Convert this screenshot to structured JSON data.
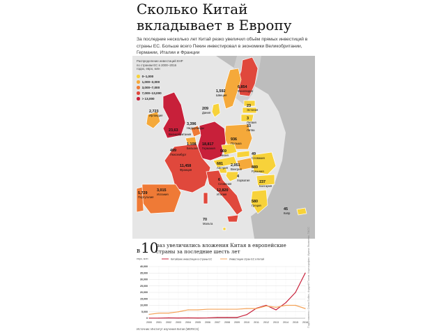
{
  "header": {
    "title": "Сколько Китай вкладывает в Европу",
    "lead": "За последние несколько лет Китай резко увеличил объём прямых инвестиций в страны ЕС. Больше всего Пекин инвестировал в экономики Великобритании, Германии, Италии и Франции"
  },
  "legend": {
    "caption": "Распределение инвестиций КНР по странам ЕС в 2000–2016 годах, евро, млн",
    "items": [
      {
        "label": "0–1,000",
        "color": "#f7d23a"
      },
      {
        "label": "1,000–3,000",
        "color": "#f5a93a"
      },
      {
        "label": "3,000–7,000",
        "color": "#ef7a36"
      },
      {
        "label": "7,000–13,000",
        "color": "#e0483c"
      },
      {
        "label": "> 13,000",
        "color": "#c8203a"
      }
    ]
  },
  "map": {
    "countries": [
      {
        "name": "Ирландия",
        "value": "2,723"
      },
      {
        "name": "Великобритания",
        "value": "23,63"
      },
      {
        "name": "Нидерланды",
        "value": "3,396"
      },
      {
        "name": "Бельгия",
        "value": "1,108"
      },
      {
        "name": "Люксембург",
        "value": "499"
      },
      {
        "name": "Германия",
        "value": "18,817"
      },
      {
        "name": "Франция",
        "value": "11,458"
      },
      {
        "name": "Испания",
        "value": "3,015"
      },
      {
        "name": "Португалия",
        "value": "5,729"
      },
      {
        "name": "Италия",
        "value": "12,820"
      },
      {
        "name": "Мальта",
        "value": "70"
      },
      {
        "name": "Дания",
        "value": "209"
      },
      {
        "name": "Швеция",
        "value": "1,592"
      },
      {
        "name": "Финляндия",
        "value": "6,854"
      },
      {
        "name": "Эстония",
        "value": "23"
      },
      {
        "name": "Латвия",
        "value": "3"
      },
      {
        "name": "Литва",
        "value": "33"
      },
      {
        "name": "Польша",
        "value": "936"
      },
      {
        "name": "Чехия",
        "value": "569"
      },
      {
        "name": "Словакия",
        "value": "49"
      },
      {
        "name": "Австрия",
        "value": "681"
      },
      {
        "name": "Венгрия",
        "value": "2,051"
      },
      {
        "name": "Словения",
        "value": "6"
      },
      {
        "name": "Хорватия",
        "value": "4"
      },
      {
        "name": "Румыния",
        "value": "889"
      },
      {
        "name": "Болгария",
        "value": "237"
      },
      {
        "name": "Греция",
        "value": "580"
      },
      {
        "name": "Кипр",
        "value": "45"
      }
    ]
  },
  "summary": {
    "in_word": "в",
    "multiplier": "10",
    "text": "раз увеличились вложения Китая в европейские страны за последние шесть лет"
  },
  "chart_data": {
    "type": "line",
    "ylabel": "евро, млн",
    "ylim": [
      0,
      40000
    ],
    "yticks": [
      "40,000",
      "35,000",
      "30,000",
      "25,000",
      "20,000",
      "15,000",
      "10,000",
      "5,000",
      "0"
    ],
    "x": [
      "2000",
      "2001",
      "2002",
      "2003",
      "2004",
      "2005",
      "2006",
      "2007",
      "2008",
      "2009",
      "2010",
      "2011",
      "2012",
      "2013",
      "2014",
      "2015",
      "2016"
    ],
    "series": [
      {
        "name": "Китайские инвестиции в страны ЕС",
        "color": "#c8203a",
        "values": [
          100,
          100,
          300,
          200,
          300,
          200,
          300,
          600,
          600,
          600,
          2800,
          7800,
          10000,
          6500,
          12000,
          20000,
          35000
        ]
      },
      {
        "name": "Инвестиции стран ЕС в Китай",
        "color": "#f4a35a",
        "values": [
          3000,
          4000,
          4000,
          5000,
          6500,
          6500,
          7000,
          7000,
          7000,
          7000,
          7500,
          7500,
          9500,
          8500,
          10000,
          10000,
          7500
        ]
      }
    ]
  },
  "source": "Источник: Институт изучения Китая (MERICS)",
  "credit": "Подготовлено: Ольга Бойко, Андрей Попов. Картография: Ирина Яковлева, ТАСС"
}
